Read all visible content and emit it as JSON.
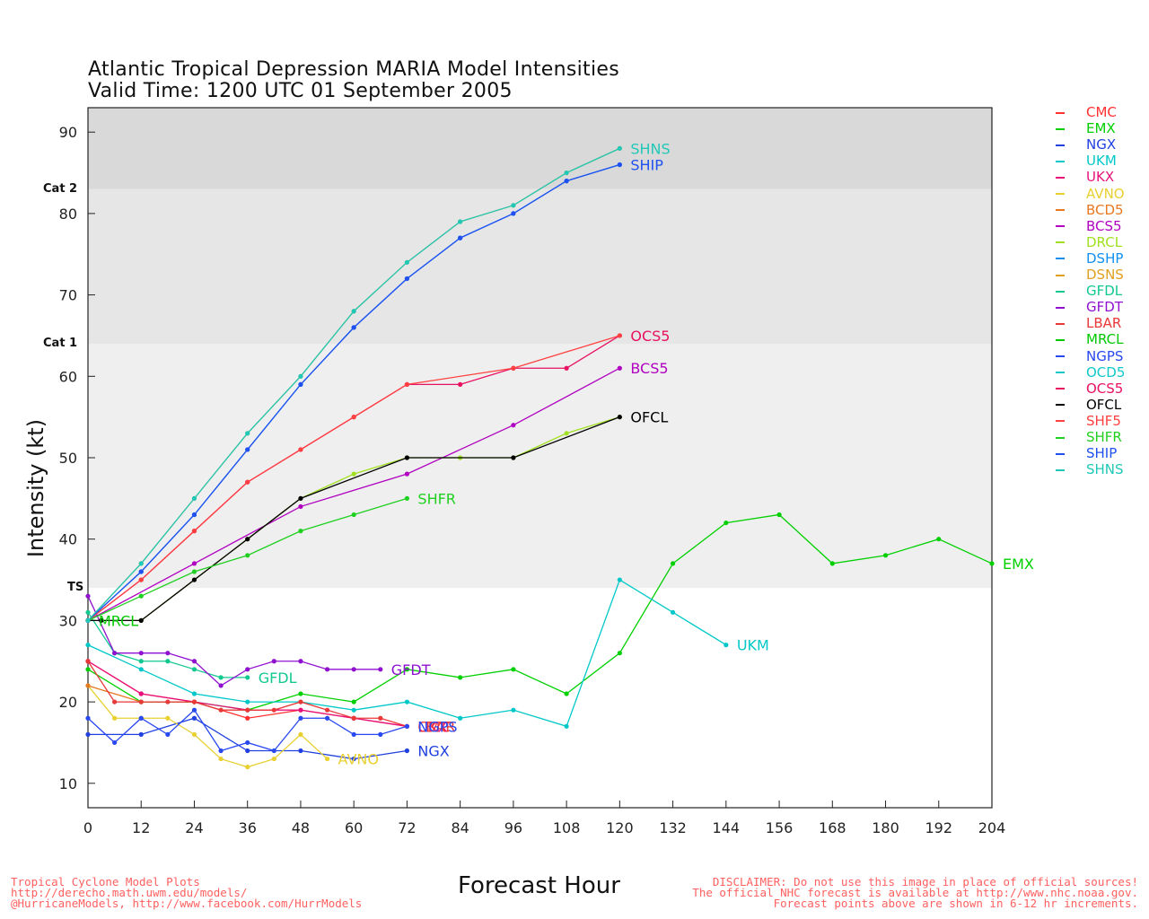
{
  "chart_data": {
    "type": "line",
    "title": "Atlantic Tropical Depression MARIA Model Intensities",
    "subtitle": "Valid Time: 1200 UTC 01 September 2005",
    "xlabel": "Forecast Hour",
    "ylabel": "Intensity (kt)",
    "xlim": [
      0,
      204
    ],
    "ylim": [
      7,
      93
    ],
    "xticks": [
      0,
      12,
      24,
      36,
      48,
      60,
      72,
      84,
      96,
      108,
      120,
      132,
      144,
      156,
      168,
      180,
      192,
      204
    ],
    "yticks": [
      10,
      20,
      30,
      40,
      50,
      60,
      70,
      80,
      90
    ],
    "bands": [
      {
        "from": 7,
        "to": 34,
        "color": "#ffffff"
      },
      {
        "from": 34,
        "to": 64,
        "color": "#efefef"
      },
      {
        "from": 64,
        "to": 83,
        "color": "#e6e6e6"
      },
      {
        "from": 83,
        "to": 93,
        "color": "#d9d9d9"
      }
    ],
    "category_labels": [
      {
        "text": "TS",
        "value": 34
      },
      {
        "text": "Cat 1",
        "value": 64
      },
      {
        "text": "Cat 2",
        "value": 83
      }
    ],
    "series": [
      {
        "name": "CMC",
        "color": "#ff3030",
        "label": "CMC",
        "x": [
          0,
          12,
          24,
          36,
          48,
          60,
          72
        ],
        "y": [
          25,
          21,
          20,
          18,
          19,
          18,
          17
        ]
      },
      {
        "name": "EMX",
        "color": "#00d000",
        "label": "EMX",
        "x": [
          0,
          12,
          24,
          36,
          48,
          60,
          72,
          84,
          96,
          108,
          120,
          132,
          144,
          156,
          168,
          180,
          192,
          204
        ],
        "y": [
          24,
          20,
          20,
          19,
          21,
          20,
          24,
          23,
          24,
          21,
          26,
          37,
          42,
          43,
          37,
          38,
          40,
          37
        ]
      },
      {
        "name": "NGX",
        "color": "#2040e0",
        "label": "NGX",
        "x": [
          0,
          12,
          24,
          36,
          48,
          60,
          72
        ],
        "y": [
          16,
          16,
          18,
          14,
          14,
          13,
          14
        ]
      },
      {
        "name": "UKM",
        "color": "#00c8c8",
        "label": "UKM",
        "x": [
          0,
          12,
          24,
          36,
          48,
          60,
          72,
          84,
          96,
          108,
          120,
          132,
          144
        ],
        "y": [
          27,
          24,
          21,
          20,
          20,
          19,
          20,
          18,
          19,
          17,
          35,
          31,
          27
        ]
      },
      {
        "name": "UKX",
        "color": "#e8107a",
        "label": "UKX",
        "x": [
          0,
          12,
          24,
          36,
          48,
          60,
          72
        ],
        "y": [
          25,
          21,
          20,
          19,
          19,
          18,
          17
        ]
      },
      {
        "name": "AVNO",
        "color": "#e8d030",
        "label": "AVNO",
        "x": [
          0,
          6,
          12,
          18,
          24,
          30,
          36,
          42,
          48,
          54
        ],
        "y": [
          22,
          18,
          18,
          18,
          16,
          13,
          12,
          13,
          16,
          13
        ]
      },
      {
        "name": "BCD5",
        "color": "#e87820",
        "label": "",
        "x": [
          0,
          12,
          24
        ],
        "y": [
          22,
          20,
          20
        ]
      },
      {
        "name": "BCS5",
        "color": "#b000c0",
        "label": "BCS5",
        "x": [
          0,
          24,
          48,
          72,
          96,
          120
        ],
        "y": [
          30,
          37,
          44,
          48,
          54,
          61
        ]
      },
      {
        "name": "DRCL",
        "color": "#a0e020",
        "label": "",
        "x": [
          0,
          12,
          24,
          36,
          48,
          60,
          72,
          84,
          96,
          108,
          120
        ],
        "y": [
          30,
          30,
          35,
          40,
          45,
          48,
          50,
          50,
          50,
          53,
          55
        ]
      },
      {
        "name": "DSHP",
        "color": "#1090f0",
        "label": "",
        "x": [
          0,
          12,
          24,
          36,
          48,
          60,
          72,
          84,
          96,
          108,
          120
        ],
        "y": [
          30,
          36,
          43,
          51,
          59,
          66,
          72,
          77,
          80,
          84,
          86
        ]
      },
      {
        "name": "DSNS",
        "color": "#e0a020",
        "label": "",
        "x": [
          0,
          12,
          24,
          36,
          48,
          60,
          72,
          84,
          96,
          108,
          120
        ],
        "y": [
          30,
          37,
          45,
          53,
          60,
          68,
          74,
          79,
          81,
          85,
          88
        ]
      },
      {
        "name": "GFDL",
        "color": "#10c890",
        "label": "GFDL",
        "x": [
          0,
          6,
          12,
          18,
          24,
          30,
          36
        ],
        "y": [
          31,
          26,
          25,
          25,
          24,
          23,
          23
        ]
      },
      {
        "name": "GFDT",
        "color": "#9010d0",
        "label": "GFDT",
        "x": [
          0,
          6,
          12,
          18,
          24,
          30,
          36,
          42,
          48,
          54,
          60,
          66
        ],
        "y": [
          33,
          26,
          26,
          26,
          25,
          22,
          24,
          25,
          25,
          24,
          24,
          24
        ]
      },
      {
        "name": "LBAR",
        "color": "#e83838",
        "label": "LBAR",
        "x": [
          0,
          6,
          12,
          18,
          24,
          30,
          36,
          42,
          48,
          54,
          60,
          66,
          72
        ],
        "y": [
          25,
          20,
          20,
          20,
          20,
          19,
          19,
          19,
          20,
          19,
          18,
          18,
          17
        ]
      },
      {
        "name": "MRCL",
        "color": "#00c800",
        "label": "MRCL",
        "x": [
          0
        ],
        "y": [
          30
        ]
      },
      {
        "name": "NGPS",
        "color": "#2848f0",
        "label": "NGPS",
        "x": [
          0,
          6,
          12,
          18,
          24,
          30,
          36,
          42,
          48,
          54,
          60,
          66,
          72
        ],
        "y": [
          18,
          15,
          18,
          16,
          19,
          14,
          15,
          14,
          18,
          18,
          16,
          16,
          17
        ]
      },
      {
        "name": "OCD5",
        "color": "#10c8c8",
        "label": "",
        "x": [
          0
        ],
        "y": [
          30
        ]
      },
      {
        "name": "OCS5",
        "color": "#e81060",
        "label": "OCS5",
        "x": [
          0,
          12,
          24,
          36,
          48,
          60,
          72,
          84,
          96,
          108,
          120
        ],
        "y": [
          30,
          35,
          41,
          47,
          51,
          55,
          59,
          59,
          61,
          61,
          65
        ]
      },
      {
        "name": "OFCL",
        "color": "#000000",
        "label": "OFCL",
        "x": [
          0,
          3,
          12,
          24,
          36,
          48,
          72,
          96,
          120
        ],
        "y": [
          30,
          30,
          30,
          35,
          40,
          45,
          50,
          50,
          55
        ]
      },
      {
        "name": "SHF5",
        "color": "#ff4040",
        "label": "",
        "x": [
          0,
          12,
          24,
          36,
          48,
          60,
          72,
          96,
          120
        ],
        "y": [
          30,
          35,
          41,
          47,
          51,
          55,
          59,
          61,
          65
        ]
      },
      {
        "name": "SHFR",
        "color": "#20d020",
        "label": "SHFR",
        "x": [
          0,
          12,
          24,
          36,
          48,
          60,
          72
        ],
        "y": [
          30,
          33,
          36,
          38,
          41,
          43,
          45
        ]
      },
      {
        "name": "SHIP",
        "color": "#2050f0",
        "label": "SHIP",
        "x": [
          0,
          12,
          24,
          36,
          48,
          60,
          72,
          84,
          96,
          108,
          120
        ],
        "y": [
          30,
          36,
          43,
          51,
          59,
          66,
          72,
          77,
          80,
          84,
          86
        ]
      },
      {
        "name": "SHNS",
        "color": "#20c8b8",
        "label": "SHNS",
        "x": [
          0,
          12,
          24,
          36,
          48,
          60,
          72,
          84,
          96,
          108,
          120
        ],
        "y": [
          30,
          37,
          45,
          53,
          60,
          68,
          74,
          79,
          81,
          85,
          88
        ]
      }
    ],
    "legend_position": "right"
  },
  "title_line1": "Atlantic Tropical Depression MARIA Model Intensities",
  "title_line2": "Valid Time: 1200 UTC 01 September 2005",
  "footer_left": [
    "Tropical Cyclone Model Plots",
    "http://derecho.math.uwm.edu/models/",
    "@HurricaneModels, http://www.facebook.com/HurrModels"
  ],
  "footer_right": [
    "DISCLAIMER: Do not use this image in place of official sources!",
    "The official NHC forecast is available at http://www.nhc.noaa.gov.",
    "Forecast points above are shown in 6-12 hr increments."
  ]
}
